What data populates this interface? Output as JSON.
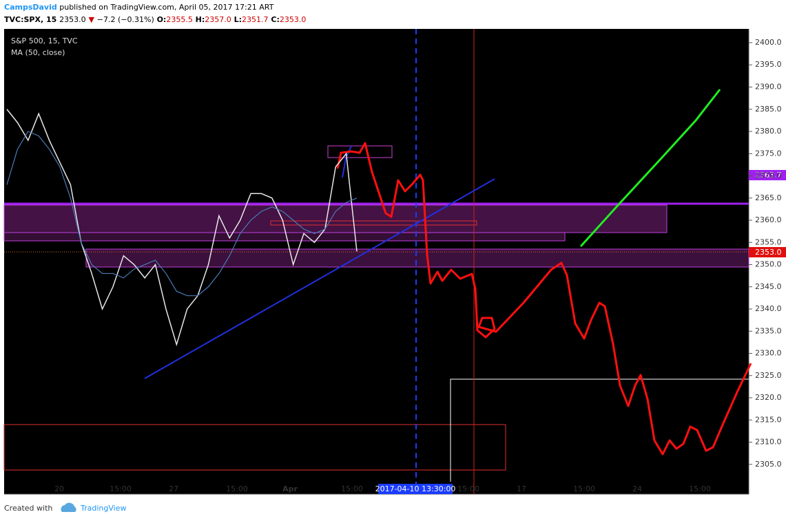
{
  "header": {
    "author": "CampsDavid",
    "published": "published on TradingView.com, April 05, 2017 17:21 ART",
    "symbol": "TVC:SPX, 15",
    "last": "2353.0",
    "arrow": "▼",
    "change": "−7.2 (−0.31%)",
    "o_label": "O:",
    "o": "2355.5",
    "h_label": "H:",
    "h": "2357.0",
    "l_label": "L:",
    "l": "2351.7",
    "c_label": "C:",
    "c": "2353.0"
  },
  "footer": {
    "created": "Created with",
    "brand": "TradingView"
  },
  "price_tags": {
    "upper": "2363.7",
    "current": "2353.0"
  },
  "cursor_label": "2017-04-10 13:30:00",
  "chart_data": {
    "type": "line",
    "x_labels": [
      "20",
      "15:00",
      "27",
      "15:00",
      "Apr",
      "15:00",
      "15:00",
      "17",
      "15:00",
      "24",
      "15:00"
    ],
    "series": [
      {
        "name": "S&P 500, 15, TVC",
        "color": "#e8e8e8",
        "values": [
          2385,
          2382,
          2378,
          2384,
          2378,
          2373,
          2368,
          2355,
          2348,
          2340,
          2345,
          2352,
          2350,
          2347,
          2350,
          2340,
          2332,
          2340,
          2343,
          2350,
          2361,
          2356,
          2360,
          2366,
          2366,
          2365,
          2360,
          2350,
          2357,
          2355,
          2358,
          2372,
          2375,
          2353
        ]
      },
      {
        "name": "MA (50, close)",
        "color": "#4a7bb7",
        "values": [
          2368,
          2376,
          2380,
          2379,
          2376,
          2372,
          2365,
          2355,
          2350,
          2348,
          2348,
          2347,
          2349,
          2350,
          2351,
          2348,
          2344,
          2343,
          2343,
          2345,
          2348,
          2352,
          2357,
          2360,
          2362,
          2363,
          2362,
          2360,
          2358,
          2357,
          2358,
          2362,
          2364,
          2365
        ]
      }
    ],
    "ylim": [
      2298.3,
      2403.1
    ],
    "yticks": [
      {
        "value": 2305,
        "label": "2305.0"
      },
      {
        "value": 2310,
        "label": "2310.0"
      },
      {
        "value": 2315,
        "label": "2315.0"
      },
      {
        "value": 2320,
        "label": "2320.0"
      },
      {
        "value": 2325,
        "label": "2325.0"
      },
      {
        "value": 2330,
        "label": "2330.0"
      },
      {
        "value": 2335,
        "label": "2335.0"
      },
      {
        "value": 2340,
        "label": "2340.0"
      },
      {
        "value": 2345,
        "label": "2345.0"
      },
      {
        "value": 2350,
        "label": "2350.0"
      },
      {
        "value": 2355,
        "label": "2355.0"
      },
      {
        "value": 2360,
        "label": "2360.0"
      },
      {
        "value": 2365,
        "label": "2365.0"
      },
      {
        "value": 2370,
        "label": "2370.0"
      },
      {
        "value": 2375,
        "label": "2375.0"
      },
      {
        "value": 2380,
        "label": "2380.0"
      },
      {
        "value": 2385,
        "label": "2385.0"
      },
      {
        "value": 2390,
        "label": "2390.0"
      },
      {
        "value": 2395,
        "label": "2395.0"
      },
      {
        "value": 2400,
        "label": "2400.0"
      }
    ]
  }
}
